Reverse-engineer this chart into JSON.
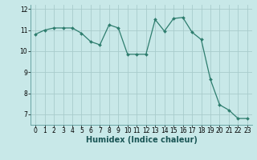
{
  "x": [
    0,
    1,
    2,
    3,
    4,
    5,
    6,
    7,
    8,
    9,
    10,
    11,
    12,
    13,
    14,
    15,
    16,
    17,
    18,
    19,
    20,
    21,
    22,
    23
  ],
  "y": [
    10.8,
    11.0,
    11.1,
    11.1,
    11.1,
    10.85,
    10.45,
    10.3,
    11.25,
    11.1,
    9.85,
    9.85,
    9.85,
    11.5,
    10.95,
    11.55,
    11.6,
    10.9,
    10.55,
    8.65,
    7.45,
    7.2,
    6.8,
    6.8
  ],
  "line_color": "#2e7d6e",
  "marker": "D",
  "markersize": 2.0,
  "linewidth": 0.9,
  "xlabel": "Humidex (Indice chaleur)",
  "xlabel_fontsize": 7,
  "ylim": [
    6.5,
    12.2
  ],
  "xlim": [
    -0.5,
    23.5
  ],
  "xticks": [
    0,
    1,
    2,
    3,
    4,
    5,
    6,
    7,
    8,
    9,
    10,
    11,
    12,
    13,
    14,
    15,
    16,
    17,
    18,
    19,
    20,
    21,
    22,
    23
  ],
  "yticks": [
    7,
    8,
    9,
    10,
    11,
    12
  ],
  "bg_color": "#c8e8e8",
  "grid_color": "#a8cccc",
  "tick_fontsize": 5.5
}
